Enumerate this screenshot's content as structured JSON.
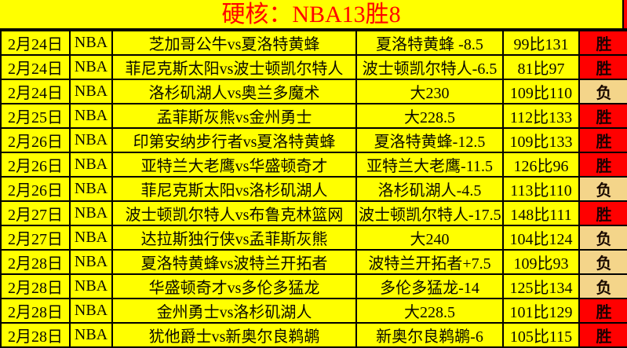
{
  "title": "硬核：NBA13胜8",
  "colors": {
    "background": "#FFFF00",
    "title_text": "#FF0000",
    "win_cell": "#FF0000",
    "loss_cell": "#F4D58A",
    "border": "#000000",
    "cell_text": "#0a0a00"
  },
  "table": {
    "rows": [
      {
        "date": "2月24日",
        "league": "NBA",
        "match": "芝加哥公牛vs夏洛特黄蜂",
        "pick": "夏洛特黄蜂 -8.5",
        "score": "99比131",
        "result": "胜",
        "status": "win"
      },
      {
        "date": "2月24日",
        "league": "NBA",
        "match": "菲尼克斯太阳vs波士顿凯尔特人",
        "pick": "波士顿凯尔特人-6.5",
        "score": "81比97",
        "result": "胜",
        "status": "win"
      },
      {
        "date": "2月24日",
        "league": "NBA",
        "match": "洛杉矶湖人vs奥兰多魔术",
        "pick": "大230",
        "score": "109比110",
        "result": "负",
        "status": "loss"
      },
      {
        "date": "2月25日",
        "league": "NBA",
        "match": "孟菲斯灰熊vs金州勇士",
        "pick": "大228.5",
        "score": "112比133",
        "result": "胜",
        "status": "win"
      },
      {
        "date": "2月26日",
        "league": "NBA",
        "match": "印第安纳步行者vs夏洛特黄蜂",
        "pick": "夏洛特黄蜂-12.5",
        "score": "109比133",
        "result": "胜",
        "status": "win"
      },
      {
        "date": "2月26日",
        "league": "NBA",
        "match": "亚特兰大老鹰vs华盛顿奇才",
        "pick": "亚特兰大老鹰-11.5",
        "score": "126比96",
        "result": "胜",
        "status": "win"
      },
      {
        "date": "2月26日",
        "league": "NBA",
        "match": "菲尼克斯太阳vs洛杉矶湖人",
        "pick": "洛杉矶湖人-4.5",
        "score": "113比110",
        "result": "负",
        "status": "loss"
      },
      {
        "date": "2月27日",
        "league": "NBA",
        "match": "波士顿凯尔特人vs布鲁克林篮网",
        "pick": "波士顿凯尔特人-17.5",
        "score": "148比111",
        "result": "胜",
        "status": "win"
      },
      {
        "date": "2月27日",
        "league": "NBA",
        "match": "达拉斯独行侠vs孟菲斯灰熊",
        "pick": "大240",
        "score": "104比124",
        "result": "负",
        "status": "loss"
      },
      {
        "date": "2月28日",
        "league": "NBA",
        "match": "夏洛特黄蜂vs波特兰开拓者",
        "pick": "波特兰开拓者+7.5",
        "score": "109比93",
        "result": "负",
        "status": "loss"
      },
      {
        "date": "2月28日",
        "league": "NBA",
        "match": "华盛顿奇才vs多伦多猛龙",
        "pick": "多伦多猛龙-14",
        "score": "125比134",
        "result": "负",
        "status": "loss"
      },
      {
        "date": "2月28日",
        "league": "NBA",
        "match": "金州勇士vs洛杉矶湖人",
        "pick": "大228.5",
        "score": "101比129",
        "result": "胜",
        "status": "win"
      },
      {
        "date": "2月28日",
        "league": "NBA",
        "match": "犹他爵士vs新奥尔良鹈鹕",
        "pick": "新奥尔良鹈鹕-6",
        "score": "105比115",
        "result": "胜",
        "status": "win"
      }
    ]
  }
}
